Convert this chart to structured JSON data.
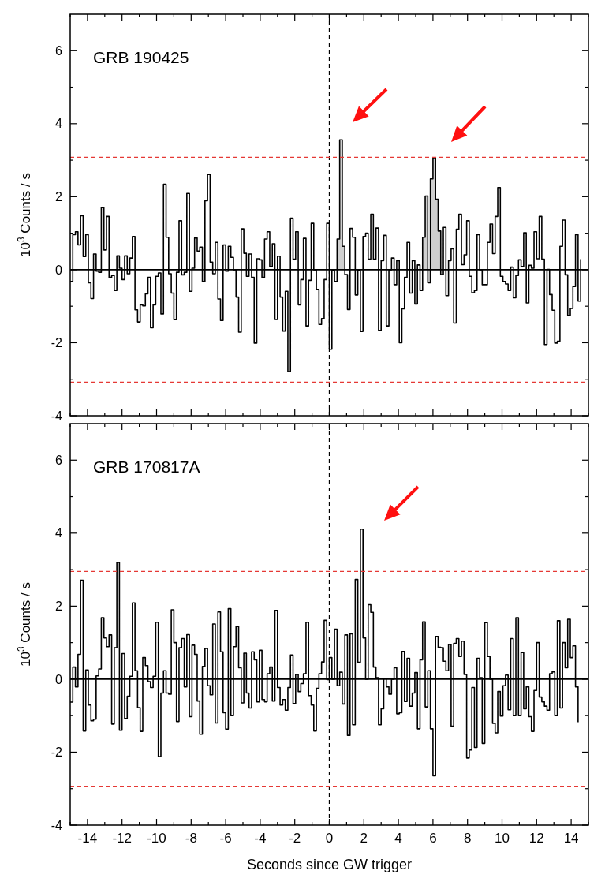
{
  "chart_data": [
    {
      "type": "step",
      "title": "GRB 190425",
      "ylabel": "10$^{3}$ Counts / s",
      "xlim": [
        -15,
        15
      ],
      "ylim": [
        -4,
        7
      ],
      "tick_labels": "y",
      "xticks": [
        {
          "value": -15,
          "label": null
        },
        -14,
        {
          "value": -13,
          "label": null
        },
        -12,
        {
          "value": -11,
          "label": null
        },
        -10,
        {
          "value": -9,
          "label": null
        },
        -8,
        {
          "value": -7,
          "label": null
        },
        -6,
        {
          "value": -5,
          "label": null
        },
        -4,
        {
          "value": -3,
          "label": null
        },
        -2,
        {
          "value": -1,
          "label": null
        },
        0,
        {
          "value": 1,
          "label": null
        },
        2,
        {
          "value": 3,
          "label": null
        },
        4,
        {
          "value": 5,
          "label": null
        },
        6,
        {
          "value": 7,
          "label": null
        },
        8,
        {
          "value": 9,
          "label": null
        },
        10,
        {
          "value": 11,
          "label": null
        },
        12,
        {
          "value": 13,
          "label": null
        },
        14,
        {
          "value": 15,
          "label": null
        }
      ],
      "yticks": [
        -4,
        {
          "value": -3,
          "label": null
        },
        -2,
        {
          "value": -1,
          "label": null
        },
        0,
        {
          "value": 1,
          "label": null
        },
        2,
        {
          "value": 3,
          "label": null
        },
        4,
        {
          "value": 5,
          "label": null
        },
        6
      ],
      "x": [
        -15,
        -14.85,
        -14.7,
        -14.55,
        -14.4,
        -14.25,
        -14.1,
        -13.95,
        -13.8,
        -13.65,
        -13.5,
        -13.35,
        -13.2,
        -13.05,
        -12.9,
        -12.75,
        -12.6,
        -12.45,
        -12.3,
        -12.15,
        -12,
        -11.85,
        -11.7,
        -11.55,
        -11.4,
        -11.25,
        -11.1,
        -10.95,
        -10.8,
        -10.65,
        -10.5,
        -10.35,
        -10.2,
        -10.05,
        -9.9,
        -9.75,
        -9.6,
        -9.45,
        -9.3,
        -9.15,
        -9,
        -8.85,
        -8.7,
        -8.55,
        -8.4,
        -8.25,
        -8.1,
        -7.95,
        -7.8,
        -7.65,
        -7.5,
        -7.35,
        -7.2,
        -7.05,
        -6.9,
        -6.75,
        -6.6,
        -6.45,
        -6.3,
        -6.15,
        -6,
        -5.85,
        -5.7,
        -5.55,
        -5.4,
        -5.25,
        -5.1,
        -4.95,
        -4.8,
        -4.65,
        -4.5,
        -4.35,
        -4.2,
        -4.05,
        -3.9,
        -3.75,
        -3.6,
        -3.45,
        -3.3,
        -3.15,
        -3,
        -2.85,
        -2.7,
        -2.55,
        -2.4,
        -2.25,
        -2.1,
        -1.95,
        -1.8,
        -1.65,
        -1.5,
        -1.35,
        -1.2,
        -1.05,
        -0.9,
        -0.75,
        -0.6,
        -0.45,
        -0.3,
        -0.15,
        0,
        0.15,
        0.3,
        0.45,
        0.6,
        0.75,
        0.9,
        1.05,
        1.2,
        1.35,
        1.5,
        1.65,
        1.8,
        1.95,
        2.1,
        2.25,
        2.4,
        2.55,
        2.7,
        2.85,
        3,
        3.15,
        3.3,
        3.45,
        3.6,
        3.75,
        3.9,
        4.05,
        4.2,
        4.35,
        4.5,
        4.65,
        4.8,
        4.95,
        5.1,
        5.25,
        5.4,
        5.55,
        5.7,
        5.85,
        6,
        6.15,
        6.3,
        6.45,
        6.6,
        6.75,
        6.9,
        7.05,
        7.2,
        7.35,
        7.5,
        7.65,
        7.8,
        7.95,
        8.1,
        8.25,
        8.4,
        8.55,
        8.7,
        8.85,
        9,
        9.15,
        9.3,
        9.45,
        9.6,
        9.75,
        9.9,
        10.05,
        10.2,
        10.35,
        10.5,
        10.65,
        10.8,
        10.95,
        11.1,
        11.25,
        11.4,
        11.55,
        11.7,
        11.85,
        12,
        12.15,
        12.3,
        12.45,
        12.6,
        12.75,
        12.9,
        13.05,
        13.2,
        13.35,
        13.5,
        13.65,
        13.8,
        13.95,
        14.1,
        14.25,
        14.4,
        14.55
      ],
      "series": [
        {
          "color": "#000000",
          "values": [
            -0.32,
            0.96,
            1.04,
            0.68,
            1.48,
            0.36,
            0.96,
            -0.36,
            -0.79,
            0.43,
            -0.04,
            -0.07,
            1.7,
            0.54,
            1.46,
            -0.21,
            -0.16,
            -0.57,
            0.38,
            0.04,
            -0.27,
            0.38,
            -0.11,
            0.32,
            0.91,
            -1.1,
            -1.43,
            -0.96,
            -0.99,
            -0.66,
            -0.21,
            -1.59,
            -0.96,
            -0.18,
            -0.09,
            -1.21,
            2.34,
            0.89,
            -0.11,
            -0.64,
            -1.37,
            -0.07,
            1.34,
            -0.14,
            -0.07,
            2.09,
            -0.59,
            0.04,
            0.87,
            0.51,
            0.62,
            -0.32,
            1.89,
            2.61,
            0.21,
            -0.11,
            0.75,
            -0.8,
            -1.39,
            0.68,
            -0.04,
            0.64,
            0.34,
            0,
            -0.75,
            -1.71,
            1.12,
            0.45,
            -0.18,
            0.43,
            -0.21,
            -2.01,
            0.3,
            0.27,
            -0.21,
            0.84,
            1.04,
            0.09,
            0.71,
            -1.36,
            0.37,
            -0.75,
            -1.68,
            -0.59,
            -2.79,
            1.41,
            0.29,
            1.04,
            -0.96,
            -0.27,
            0.86,
            -1.54,
            -0.29,
            1.27,
            0,
            -0.54,
            -1.5,
            -1.34,
            -0.27,
            1.27,
            -2.18,
            -0.01,
            -0.32,
            0.84,
            3.56,
            0.64,
            -0.13,
            -1.09,
            1.13,
            0.89,
            -0.69,
            -0.01,
            -1.69,
            0.91,
            1.0,
            0.29,
            1.52,
            0.29,
            1.14,
            -1.66,
            0.25,
            0.94,
            -1.54,
            0,
            0.32,
            -0.41,
            0.25,
            -2.0,
            -1.07,
            -0.21,
            0.75,
            -0.64,
            0.25,
            -0.94,
            0.13,
            -0.57,
            0.89,
            2.02,
            -0.36,
            2.49,
            3.07,
            1.93,
            1.06,
            -0.13,
            1.16,
            -0.71,
            0.25,
            0.57,
            -1.46,
            1.11,
            1.52,
            0.14,
            0.41,
            1.34,
            -0.18,
            -0.63,
            -0.57,
            0.96,
            0,
            -0.41,
            -0.41,
            0.75,
            1.25,
            0.44,
            1.46,
            2.25,
            -0.18,
            -0.32,
            -0.39,
            -0.57,
            0.07,
            -0.77,
            -0.16,
            0.27,
            0.09,
            1.01,
            -0.91,
            0.12,
            0.04,
            1.04,
            0.3,
            1.46,
            0.29,
            -2.05,
            0.01,
            -0.68,
            -1.11,
            -2.01,
            -1.96,
            0.64,
            1.36,
            -0.14,
            -1.25,
            -1.06,
            -0.46,
            0.96,
            -0.86,
            0.29
          ]
        },
        {
          "type": "area",
          "color": "#cfcfcf",
          "x": [
            0.45,
            0.6,
            0.75,
            0.9,
            5.4,
            5.55,
            5.7,
            5.85,
            6.0,
            6.15,
            6.3
          ],
          "values": [
            0.84,
            3.56,
            0.64,
            null,
            0.89,
            2.02,
            -0.36,
            2.49,
            3.07,
            1.93,
            1.06
          ]
        }
      ],
      "ref_lines": [
        {
          "axis": "y",
          "value": 0,
          "color": "#000000",
          "line_style": "solid"
        },
        {
          "axis": "x",
          "value": 0,
          "color": "#000000",
          "line_style": "dashed"
        },
        {
          "axis": "y",
          "value": 3.08,
          "color": "#e53935",
          "line_style": "dashed"
        },
        {
          "axis": "y",
          "value": -3.08,
          "color": "#e53935",
          "line_style": "dashed"
        }
      ]
    },
    {
      "type": "step",
      "title": "GRB 170817A",
      "xlabel": "Seconds since GW trigger",
      "ylabel": "10$^{3}$ Counts / s",
      "xlim": [
        -15,
        15
      ],
      "ylim": [
        -4,
        7
      ],
      "xticks": [
        {
          "value": -15,
          "label": null
        },
        -14,
        {
          "value": -13,
          "label": null
        },
        -12,
        {
          "value": -11,
          "label": null
        },
        -10,
        {
          "value": -9,
          "label": null
        },
        -8,
        {
          "value": -7,
          "label": null
        },
        -6,
        {
          "value": -5,
          "label": null
        },
        -4,
        {
          "value": -3,
          "label": null
        },
        -2,
        {
          "value": -1,
          "label": null
        },
        0,
        {
          "value": 1,
          "label": null
        },
        2,
        {
          "value": 3,
          "label": null
        },
        4,
        {
          "value": 5,
          "label": null
        },
        6,
        {
          "value": 7,
          "label": null
        },
        8,
        {
          "value": 9,
          "label": null
        },
        10,
        {
          "value": 11,
          "label": null
        },
        12,
        {
          "value": 13,
          "label": null
        },
        14,
        {
          "value": 15,
          "label": null
        }
      ],
      "yticks": [
        -4,
        {
          "value": -3,
          "label": null
        },
        -2,
        {
          "value": -1,
          "label": null
        },
        0,
        {
          "value": 1,
          "label": null
        },
        2,
        {
          "value": 3,
          "label": null
        },
        4,
        {
          "value": 5,
          "label": null
        },
        6
      ],
      "x": [
        -15,
        -14.85,
        -14.7,
        -14.55,
        -14.4,
        -14.25,
        -14.1,
        -13.95,
        -13.8,
        -13.65,
        -13.5,
        -13.35,
        -13.2,
        -13.05,
        -12.9,
        -12.75,
        -12.6,
        -12.45,
        -12.3,
        -12.15,
        -12,
        -11.85,
        -11.7,
        -11.55,
        -11.4,
        -11.25,
        -11.1,
        -10.95,
        -10.8,
        -10.65,
        -10.5,
        -10.35,
        -10.2,
        -10.05,
        -9.9,
        -9.75,
        -9.6,
        -9.45,
        -9.3,
        -9.15,
        -9,
        -8.85,
        -8.7,
        -8.55,
        -8.4,
        -8.25,
        -8.1,
        -7.95,
        -7.8,
        -7.65,
        -7.5,
        -7.35,
        -7.2,
        -7.05,
        -6.9,
        -6.75,
        -6.6,
        -6.45,
        -6.3,
        -6.15,
        -6,
        -5.85,
        -5.7,
        -5.55,
        -5.4,
        -5.25,
        -5.1,
        -4.95,
        -4.8,
        -4.65,
        -4.5,
        -4.35,
        -4.2,
        -4.05,
        -3.9,
        -3.75,
        -3.6,
        -3.45,
        -3.3,
        -3.15,
        -3,
        -2.85,
        -2.7,
        -2.55,
        -2.4,
        -2.25,
        -2.1,
        -1.95,
        -1.8,
        -1.65,
        -1.5,
        -1.35,
        -1.2,
        -1.05,
        -0.9,
        -0.75,
        -0.6,
        -0.45,
        -0.3,
        -0.15,
        0,
        0.15,
        0.3,
        0.45,
        0.6,
        0.75,
        0.9,
        1.05,
        1.2,
        1.35,
        1.5,
        1.65,
        1.8,
        1.95,
        2.1,
        2.25,
        2.4,
        2.55,
        2.7,
        2.85,
        3,
        3.15,
        3.3,
        3.45,
        3.6,
        3.75,
        3.9,
        4.05,
        4.2,
        4.35,
        4.5,
        4.65,
        4.8,
        4.95,
        5.1,
        5.25,
        5.4,
        5.55,
        5.7,
        5.85,
        6,
        6.15,
        6.3,
        6.45,
        6.6,
        6.75,
        6.9,
        7.05,
        7.2,
        7.35,
        7.5,
        7.65,
        7.8,
        7.95,
        8.1,
        8.25,
        8.4,
        8.55,
        8.7,
        8.85,
        9,
        9.15,
        9.3,
        9.45,
        9.6,
        9.75,
        9.9,
        10.05,
        10.2,
        10.35,
        10.5,
        10.65,
        10.8,
        10.95,
        11.1,
        11.25,
        11.4,
        11.55,
        11.7,
        11.85,
        12,
        12.15,
        12.3,
        12.45,
        12.6,
        12.75,
        12.9,
        13.05,
        13.2,
        13.35,
        13.5,
        13.65,
        13.8,
        13.95,
        14.1,
        14.25,
        14.4
      ],
      "series": [
        {
          "color": "#000000",
          "values": [
            -0.63,
            0.33,
            -0.21,
            0.68,
            2.71,
            -1.42,
            0.25,
            -0.71,
            -1.14,
            -1.1,
            0.09,
            0.28,
            1.68,
            1.13,
            0.89,
            1.21,
            -1.23,
            0.86,
            3.2,
            -1.4,
            0.7,
            -1.08,
            -0.47,
            0.08,
            2.09,
            0.23,
            -0.78,
            -1.43,
            0.59,
            0.37,
            -0.07,
            -0.23,
            0.08,
            1.56,
            -2.12,
            -0.38,
            0.23,
            -0.38,
            -0.41,
            1.9,
            1.0,
            -1.16,
            0.86,
            1.11,
            -0.21,
            1.22,
            -1.03,
            0.93,
            0.68,
            -0.6,
            -1.51,
            0.35,
            0.84,
            -0.18,
            -0.43,
            1.51,
            -1.2,
            1.84,
            0.75,
            -0.92,
            -1.37,
            1.93,
            -1.0,
            0.89,
            1.44,
            0.31,
            -0.65,
            0.71,
            -0.38,
            -0.79,
            0.75,
            0.53,
            -0.62,
            0.79,
            -0.56,
            -0.62,
            0.15,
            0.33,
            -0.6,
            1.88,
            -0.23,
            -0.71,
            -0.56,
            -0.85,
            -0.23,
            0.66,
            -0.67,
            0.13,
            -0.34,
            -0.12,
            0.15,
            1.56,
            -0.45,
            -0.71,
            -1.42,
            -0.25,
            0.15,
            0.47,
            1.61,
            -0.01,
            0.59,
            0,
            1.37,
            -0.18,
            0.19,
            -0.68,
            1.21,
            -1.54,
            1.24,
            -1.25,
            2.73,
            0.46,
            4.11,
            1.13,
            0,
            2.04,
            1.83,
            0.33,
            0.04,
            -1.25,
            -0.81,
            0.02,
            -0.21,
            -0.41,
            0,
            0.31,
            -0.95,
            -0.92,
            0.76,
            -0.61,
            0.57,
            -0.74,
            -0.38,
            0.18,
            -1.36,
            0.53,
            1.57,
            -0.76,
            0.23,
            -1.36,
            -2.65,
            1.17,
            0.87,
            0.86,
            0.49,
            0.23,
            0.95,
            -1.29,
            0.98,
            1.11,
            0.62,
            1.04,
            0.13,
            -2.16,
            -1.94,
            -0.23,
            -1.87,
            0.57,
            0.04,
            -1.76,
            1.55,
            0.62,
            0,
            -1.21,
            -1.47,
            -0.34,
            -1.01,
            -0.18,
            0.11,
            -0.84,
            1.11,
            -1.0,
            1.68,
            -1.0,
            0.73,
            -0.81,
            -0.21,
            -1.03,
            -1.43,
            -0.31,
            1.0,
            -0.49,
            -0.62,
            -0.74,
            -0.85,
            0.15,
            0.2,
            -1.0,
            1.6,
            -0.79,
            1.0,
            0.31,
            1.64,
            0.59,
            0.91,
            -0.21,
            -1.18
          ]
        }
      ],
      "ref_lines": [
        {
          "axis": "y",
          "value": 0,
          "color": "#000000",
          "line_style": "solid"
        },
        {
          "axis": "x",
          "value": 0,
          "color": "#000000",
          "line_style": "dashed"
        },
        {
          "axis": "y",
          "value": 2.95,
          "color": "#e53935",
          "line_style": "dashed"
        },
        {
          "axis": "y",
          "value": -2.95,
          "color": "#e53935",
          "line_style": "dashed"
        }
      ]
    }
  ]
}
